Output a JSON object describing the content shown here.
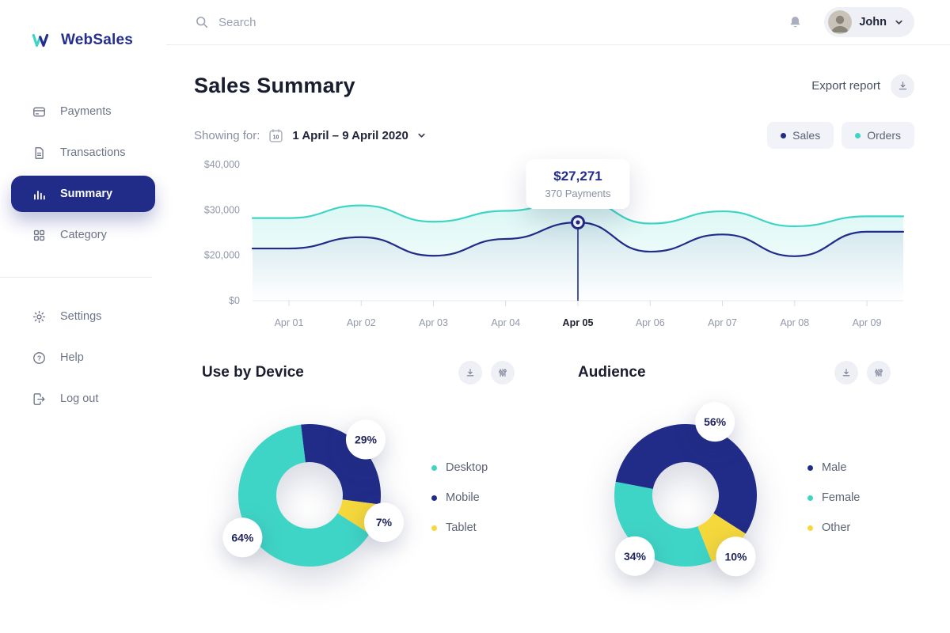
{
  "brand": {
    "name": "WebSales"
  },
  "topbar": {
    "search_placeholder": "Search",
    "user": {
      "name": "John"
    }
  },
  "sidebar": {
    "items": [
      {
        "label": "Payments",
        "active": false
      },
      {
        "label": "Transactions",
        "active": false
      },
      {
        "label": "Summary",
        "active": true
      },
      {
        "label": "Category",
        "active": false
      }
    ],
    "footer_items": [
      {
        "label": "Settings"
      },
      {
        "label": "Help"
      },
      {
        "label": "Log out"
      }
    ]
  },
  "page": {
    "title": "Sales Summary",
    "export_label": "Export report",
    "showing_for_label": "Showing for:",
    "date_range": "1 April – 9 April 2020",
    "calendar_day": "10",
    "legend": [
      {
        "label": "Sales",
        "color": "#212c89"
      },
      {
        "label": "Orders",
        "color": "#3fd5c6"
      }
    ]
  },
  "colors": {
    "navy": "#212c89",
    "teal": "#3fd5c6",
    "yellow": "#f5d83c",
    "chip_bg": "#f1f3f9",
    "muted_text": "#8a90a3"
  },
  "chart_data": [
    {
      "type": "line",
      "title": "Sales Summary",
      "categories": [
        "Apr 01",
        "Apr 02",
        "Apr 03",
        "Apr 04",
        "Apr 05",
        "Apr 06",
        "Apr 07",
        "Apr 08",
        "Apr 09"
      ],
      "series": [
        {
          "name": "Orders",
          "color": "#3fd5c6",
          "values": [
            28200,
            31000,
            27400,
            29800,
            32400,
            27000,
            29700,
            26400,
            28600
          ]
        },
        {
          "name": "Sales",
          "color": "#212c89",
          "values": [
            21500,
            24000,
            19800,
            23600,
            27271,
            20800,
            24600,
            19600,
            25200
          ]
        }
      ],
      "y_ticks": {
        "values": [
          0,
          20000,
          30000,
          40000
        ],
        "labels": [
          "$0",
          "$20,000",
          "$30,000",
          "$40,000"
        ]
      },
      "grid": "off",
      "highlight": {
        "category": "Apr 05",
        "series": "Sales",
        "value": 27271,
        "value_label": "$27,271",
        "sub_label": "370 Payments"
      }
    },
    {
      "type": "pie",
      "title": "Use by Device",
      "start_angle": -7,
      "segments": [
        {
          "label": "Mobile",
          "value": 29,
          "color": "#212c89"
        },
        {
          "label": "Tablet",
          "value": 7,
          "color": "#f5d83c"
        },
        {
          "label": "Desktop",
          "value": 64,
          "color": "#3fd5c6"
        }
      ],
      "legend": [
        {
          "label": "Desktop",
          "color": "#3fd5c6"
        },
        {
          "label": "Mobile",
          "color": "#212c89"
        },
        {
          "label": "Tablet",
          "color": "#f5d83c"
        }
      ]
    },
    {
      "type": "pie",
      "title": "Audience",
      "start_angle": -79,
      "segments": [
        {
          "label": "Male",
          "value": 56,
          "color": "#212c89"
        },
        {
          "label": "Other",
          "value": 10,
          "color": "#f5d83c"
        },
        {
          "label": "Female",
          "value": 34,
          "color": "#3fd5c6"
        }
      ],
      "legend": [
        {
          "label": "Male",
          "color": "#212c89"
        },
        {
          "label": "Female",
          "color": "#3fd5c6"
        },
        {
          "label": "Other",
          "color": "#f5d83c"
        }
      ]
    }
  ]
}
